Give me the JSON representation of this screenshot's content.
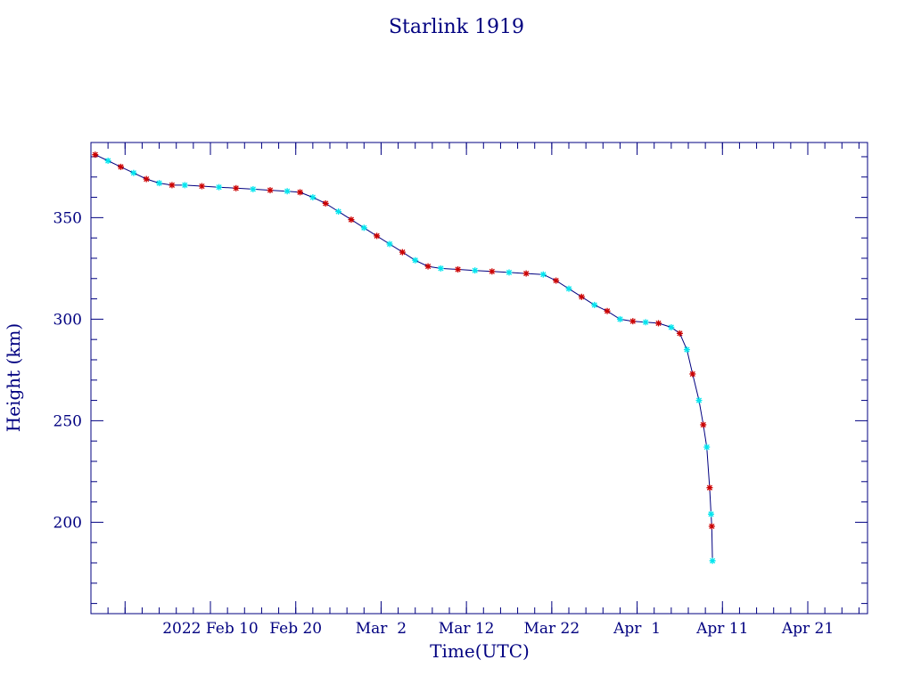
{
  "chart_data": {
    "type": "scatter",
    "title": "Starlink 1919",
    "xlabel": "Time(UTC)",
    "ylabel": "Height (km)",
    "xlim": [
      "2022-01-27",
      "2022-04-28"
    ],
    "ylim": [
      155,
      387
    ],
    "x_ticks": [
      {
        "label": "2022 Feb 10",
        "date": "2022-02-10"
      },
      {
        "label": "Feb 20",
        "date": "2022-02-20"
      },
      {
        "label": "Mar  2",
        "date": "2022-03-02"
      },
      {
        "label": "Mar 12",
        "date": "2022-03-12"
      },
      {
        "label": "Mar 22",
        "date": "2022-03-22"
      },
      {
        "label": "Apr  1",
        "date": "2022-04-01"
      },
      {
        "label": "Apr 11",
        "date": "2022-04-11"
      },
      {
        "label": "Apr 21",
        "date": "2022-04-21"
      }
    ],
    "y_ticks": [
      200,
      250,
      300,
      350
    ],
    "grid": false,
    "colors": {
      "frame": "#000080",
      "line": "#000080",
      "marker_a": "#cc0000",
      "marker_b": "#00e5ee"
    },
    "series": [
      {
        "marker": "asterisk",
        "points": [
          [
            "2022-01-27T12:00",
            381
          ],
          [
            "2022-01-29T00:00",
            378
          ],
          [
            "2022-01-30T12:00",
            375
          ],
          [
            "2022-02-01T00:00",
            372
          ],
          [
            "2022-02-02T12:00",
            369
          ],
          [
            "2022-02-04T00:00",
            367
          ],
          [
            "2022-02-05T12:00",
            366
          ],
          [
            "2022-02-07T00:00",
            366
          ],
          [
            "2022-02-09T00:00",
            365.5
          ],
          [
            "2022-02-11T00:00",
            365
          ],
          [
            "2022-02-13T00:00",
            364.5
          ],
          [
            "2022-02-15T00:00",
            364
          ],
          [
            "2022-02-17T00:00",
            363.5
          ],
          [
            "2022-02-19T00:00",
            363
          ],
          [
            "2022-02-20T12:00",
            362.5
          ],
          [
            "2022-02-22T00:00",
            360
          ],
          [
            "2022-02-23T12:00",
            357
          ],
          [
            "2022-02-25T00:00",
            353
          ],
          [
            "2022-02-26T12:00",
            349
          ],
          [
            "2022-02-28T00:00",
            345
          ],
          [
            "2022-03-01T12:00",
            341
          ],
          [
            "2022-03-03T00:00",
            337
          ],
          [
            "2022-03-04T12:00",
            333
          ],
          [
            "2022-03-06T00:00",
            329
          ],
          [
            "2022-03-07T12:00",
            326
          ],
          [
            "2022-03-09T00:00",
            325
          ],
          [
            "2022-03-11T00:00",
            324.5
          ],
          [
            "2022-03-13T00:00",
            324
          ],
          [
            "2022-03-15T00:00",
            323.5
          ],
          [
            "2022-03-17T00:00",
            323
          ],
          [
            "2022-03-19T00:00",
            322.5
          ],
          [
            "2022-03-21T00:00",
            322
          ],
          [
            "2022-03-22T12:00",
            319
          ],
          [
            "2022-03-24T00:00",
            315
          ],
          [
            "2022-03-25T12:00",
            311
          ],
          [
            "2022-03-27T00:00",
            307
          ],
          [
            "2022-03-28T12:00",
            304
          ],
          [
            "2022-03-30T00:00",
            300
          ],
          [
            "2022-03-31T12:00",
            299
          ],
          [
            "2022-04-02T00:00",
            298.5
          ],
          [
            "2022-04-03T12:00",
            298
          ],
          [
            "2022-04-05T00:00",
            296
          ],
          [
            "2022-04-06T00:00",
            293
          ],
          [
            "2022-04-06T20:00",
            285
          ],
          [
            "2022-04-07T12:00",
            273
          ],
          [
            "2022-04-08T06:00",
            260
          ],
          [
            "2022-04-08T18:00",
            248
          ],
          [
            "2022-04-09T04:00",
            237
          ],
          [
            "2022-04-09T12:00",
            217
          ],
          [
            "2022-04-09T16:00",
            204
          ],
          [
            "2022-04-09T18:00",
            198
          ],
          [
            "2022-04-09T20:00",
            181
          ]
        ]
      }
    ]
  }
}
